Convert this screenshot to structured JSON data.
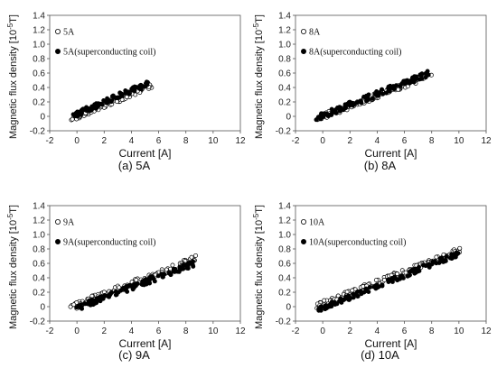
{
  "chart_data": [
    {
      "type": "scatter",
      "caption": "(a) 5A",
      "xlabel": "Current [A]",
      "ylabel_main": "Magnetic flux density [10",
      "ylabel_exp": "-5",
      "ylabel_end": "T]",
      "xlim": [
        -2,
        12
      ],
      "ylim": [
        -0.2,
        1.4
      ],
      "xticks": [
        "-2",
        "0",
        "2",
        "4",
        "6",
        "8",
        "10",
        "12"
      ],
      "yticks": [
        "-0.2",
        "0",
        "0.2",
        "0.4",
        "0.6",
        "0.8",
        "1.0",
        "1.2",
        "1.4"
      ],
      "legend_position": "top-left",
      "series": [
        {
          "name": "5A",
          "marker": "open-circle",
          "x_range": [
            -0.5,
            5.6
          ],
          "slope": 0.078,
          "intercept": 0.0,
          "noise": 0.04,
          "count": 90
        },
        {
          "name": "5A(superconducting coil)",
          "marker": "filled-circle",
          "x_range": [
            -0.3,
            5.2
          ],
          "slope": 0.082,
          "intercept": 0.03,
          "noise": 0.04,
          "count": 90
        }
      ]
    },
    {
      "type": "scatter",
      "caption": "(b) 8A",
      "xlabel": "Current [A]",
      "ylabel_main": "Magnetic flux density [10",
      "ylabel_exp": "-5",
      "ylabel_end": "T]",
      "xlim": [
        -2,
        12
      ],
      "ylim": [
        -0.2,
        1.4
      ],
      "xticks": [
        "-2",
        "0",
        "2",
        "4",
        "6",
        "8",
        "10",
        "12"
      ],
      "yticks": [
        "-0.2",
        "0",
        "0.2",
        "0.4",
        "0.6",
        "0.8",
        "1.0",
        "1.2",
        "1.4"
      ],
      "legend_position": "top-left",
      "series": [
        {
          "name": "8A",
          "marker": "open-circle",
          "x_range": [
            -0.5,
            8.0
          ],
          "slope": 0.072,
          "intercept": 0.0,
          "noise": 0.04,
          "count": 110
        },
        {
          "name": "8A(superconducting coil)",
          "marker": "filled-circle",
          "x_range": [
            -0.5,
            7.8
          ],
          "slope": 0.075,
          "intercept": 0.01,
          "noise": 0.04,
          "count": 110
        }
      ]
    },
    {
      "type": "scatter",
      "caption": "(c) 9A",
      "xlabel": "Current [A]",
      "ylabel_main": "Magnetic flux density [10",
      "ylabel_exp": "-5",
      "ylabel_end": "T]",
      "xlim": [
        -2,
        12
      ],
      "ylim": [
        -0.2,
        1.4
      ],
      "xticks": [
        "-2",
        "0",
        "2",
        "4",
        "6",
        "8",
        "10",
        "12"
      ],
      "yticks": [
        "-0.2",
        "0",
        "0.2",
        "0.4",
        "0.6",
        "0.8",
        "1.0",
        "1.2",
        "1.4"
      ],
      "legend_position": "top-left",
      "series": [
        {
          "name": "9A",
          "marker": "open-circle",
          "x_range": [
            -0.5,
            8.8
          ],
          "slope": 0.074,
          "intercept": 0.02,
          "noise": 0.045,
          "count": 120
        },
        {
          "name": "9A(superconducting coil)",
          "marker": "filled-circle",
          "x_range": [
            -0.2,
            8.6
          ],
          "slope": 0.072,
          "intercept": -0.02,
          "noise": 0.04,
          "count": 120
        }
      ]
    },
    {
      "type": "scatter",
      "caption": "(d) 10A",
      "xlabel": "Current [A]",
      "ylabel_main": "Magnetic flux density [10",
      "ylabel_exp": "-5",
      "ylabel_end": "T]",
      "xlim": [
        -2,
        12
      ],
      "ylim": [
        -0.2,
        1.4
      ],
      "xticks": [
        "-2",
        "0",
        "2",
        "4",
        "6",
        "8",
        "10",
        "12"
      ],
      "yticks": [
        "-0.2",
        "0",
        "0.2",
        "0.4",
        "0.6",
        "0.8",
        "1.0",
        "1.2",
        "1.4"
      ],
      "legend_position": "top-left",
      "series": [
        {
          "name": "10A",
          "marker": "open-circle",
          "x_range": [
            -0.5,
            10.2
          ],
          "slope": 0.074,
          "intercept": 0.04,
          "noise": 0.04,
          "count": 130
        },
        {
          "name": "10A(superconducting coil)",
          "marker": "filled-circle",
          "x_range": [
            -0.5,
            10.3
          ],
          "slope": 0.076,
          "intercept": -0.02,
          "noise": 0.035,
          "count": 130
        }
      ]
    }
  ]
}
